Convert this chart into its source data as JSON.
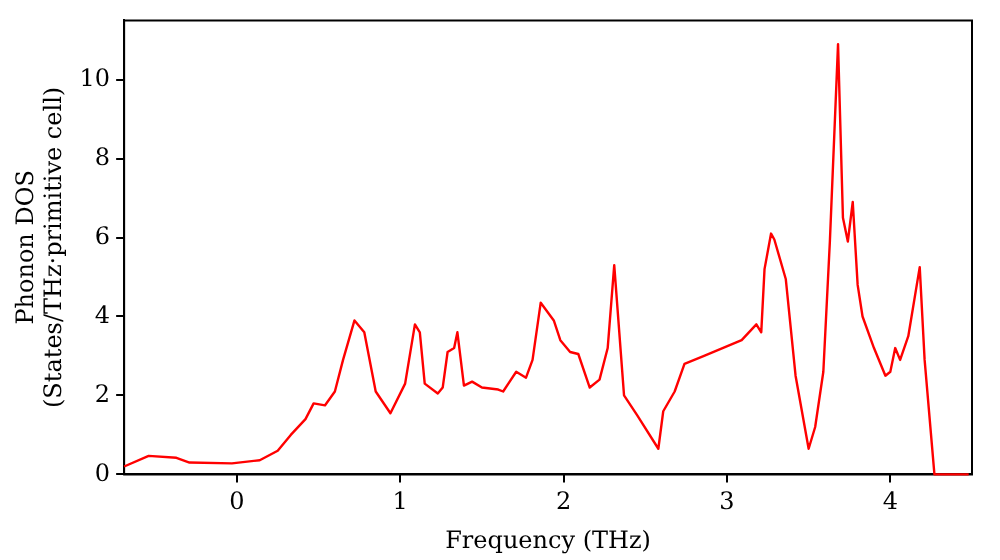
{
  "chart_data": {
    "type": "line",
    "xlabel": "Frequency (THz)",
    "ylabel": "Phonon DOS\n(States/THz·primitive cell)",
    "x": [
      -0.69,
      -0.54,
      -0.37,
      -0.29,
      -0.03,
      0.14,
      0.25,
      0.33,
      0.42,
      0.47,
      0.54,
      0.6,
      0.65,
      0.72,
      0.78,
      0.85,
      0.94,
      1.03,
      1.09,
      1.12,
      1.15,
      1.23,
      1.26,
      1.29,
      1.33,
      1.35,
      1.39,
      1.44,
      1.5,
      1.6,
      1.63,
      1.71,
      1.77,
      1.81,
      1.86,
      1.94,
      1.98,
      2.04,
      2.09,
      2.16,
      2.22,
      2.27,
      2.31,
      2.37,
      2.45,
      2.58,
      2.61,
      2.68,
      2.74,
      2.86,
      3.09,
      3.18,
      3.21,
      3.23,
      3.27,
      3.29,
      3.36,
      3.42,
      3.5,
      3.54,
      3.59,
      3.63,
      3.68,
      3.71,
      3.74,
      3.77,
      3.8,
      3.83,
      3.9,
      3.97,
      4.0,
      4.03,
      4.06,
      4.11,
      4.18,
      4.21,
      4.27,
      4.48
    ],
    "series": [
      {
        "color": "#ff0000",
        "values": [
          0.2,
          0.47,
          0.42,
          0.3,
          0.28,
          0.36,
          0.6,
          1.0,
          1.4,
          1.8,
          1.75,
          2.1,
          2.9,
          3.9,
          3.6,
          2.1,
          1.55,
          2.3,
          3.8,
          3.6,
          2.3,
          2.05,
          2.2,
          3.1,
          3.2,
          3.6,
          2.25,
          2.35,
          2.2,
          2.15,
          2.1,
          2.6,
          2.45,
          2.9,
          4.35,
          3.9,
          3.4,
          3.1,
          3.05,
          2.2,
          2.4,
          3.2,
          5.3,
          2.0,
          1.5,
          0.65,
          1.6,
          2.1,
          2.8,
          3.0,
          3.4,
          3.8,
          3.6,
          5.2,
          6.1,
          5.95,
          4.95,
          2.5,
          0.65,
          1.2,
          2.6,
          5.9,
          10.9,
          6.5,
          5.9,
          6.9,
          4.8,
          4.0,
          3.2,
          2.5,
          2.6,
          3.2,
          2.9,
          3.5,
          5.25,
          2.9,
          0,
          0
        ]
      }
    ],
    "xlim": [
      -0.69,
      4.5
    ],
    "xticks": [
      0,
      1,
      2,
      3,
      4
    ],
    "ylim": [
      0,
      11.5
    ],
    "yticks": [
      0,
      2,
      4,
      6,
      8,
      10
    ],
    "grid": false,
    "legend": false,
    "marker": "none",
    "line_style": "solid"
  }
}
